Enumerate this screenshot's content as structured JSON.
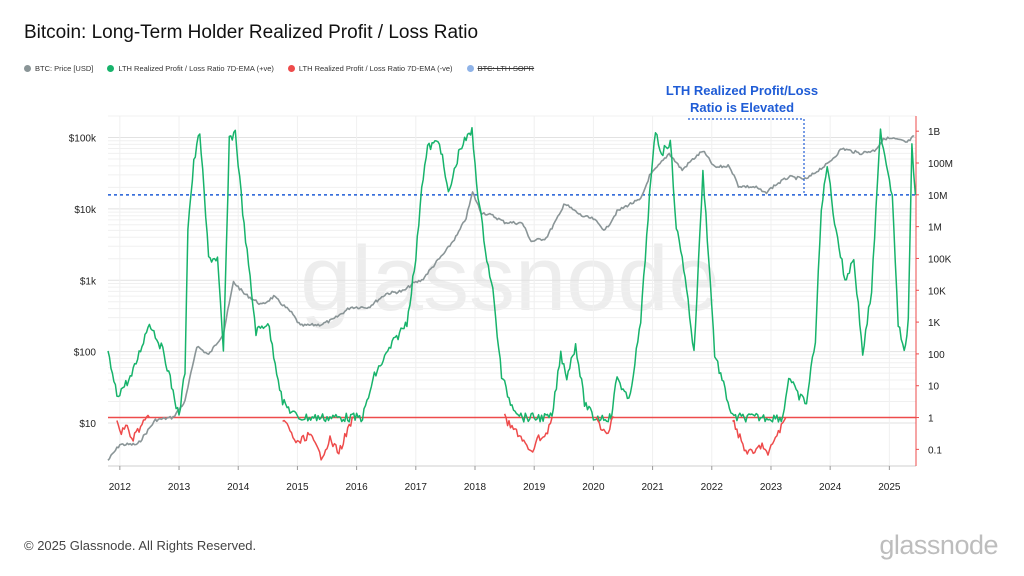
{
  "title": "Bitcoin: Long-Term Holder Realized Profit / Loss Ratio",
  "footer": "© 2025 Glassnode. All Rights Reserved.",
  "brand": "glassnode",
  "watermark": "glassnode",
  "legend": [
    {
      "label": "BTC: Price [USD]",
      "color": "#8a9597",
      "struck": false
    },
    {
      "label": "LTH Realized Profit / Loss Ratio 7D-EMA (+ve)",
      "color": "#17b36b",
      "struck": false
    },
    {
      "label": "LTH Realized Profit / Loss Ratio 7D-EMA (-ve)",
      "color": "#ee4b4b",
      "struck": false
    },
    {
      "label": "BTC: LTH-SOPR",
      "color": "#8fb3e8",
      "struck": true
    }
  ],
  "annotation": {
    "line1": "LTH Realized Profit/Loss",
    "line2": "Ratio is Elevated",
    "color": "#1f5cd6"
  },
  "chart_data": {
    "type": "line",
    "title": "Bitcoin: Long-Term Holder Realized Profit / Loss Ratio",
    "x_range": [
      2011.8,
      2025.45
    ],
    "x_ticks": [
      "2012",
      "2013",
      "2014",
      "2015",
      "2016",
      "2017",
      "2018",
      "2019",
      "2020",
      "2021",
      "2022",
      "2023",
      "2024",
      "2025"
    ],
    "y_left": {
      "label": "",
      "scale": "log",
      "range": [
        2.5,
        200000
      ],
      "ticks": [
        "$10",
        "$100",
        "$1k",
        "$10k",
        "$100k"
      ]
    },
    "y_right": {
      "label": "",
      "scale": "log",
      "range": [
        0.03,
        3000000000
      ],
      "ticks": [
        "0.1",
        "1",
        "10",
        "100",
        "1K",
        "10K",
        "100K",
        "1M",
        "10M",
        "100M",
        "1B"
      ]
    },
    "reference_lines": [
      {
        "axis": "right",
        "value": 1,
        "color": "#ee4b4b",
        "style": "solid"
      },
      {
        "axis": "right",
        "value": 10000000,
        "color": "#1f5cd6",
        "style": "dotted"
      }
    ],
    "series": [
      {
        "name": "BTC: Price [USD]",
        "axis": "left",
        "color": "#8a9597",
        "points": [
          [
            2011.8,
            3
          ],
          [
            2012.0,
            5
          ],
          [
            2012.3,
            5
          ],
          [
            2012.6,
            11
          ],
          [
            2012.9,
            12
          ],
          [
            2013.1,
            20
          ],
          [
            2013.3,
            120
          ],
          [
            2013.5,
            90
          ],
          [
            2013.75,
            180
          ],
          [
            2013.92,
            950
          ],
          [
            2014.1,
            650
          ],
          [
            2014.4,
            450
          ],
          [
            2014.6,
            590
          ],
          [
            2014.9,
            350
          ],
          [
            2015.05,
            230
          ],
          [
            2015.4,
            240
          ],
          [
            2015.6,
            280
          ],
          [
            2015.9,
            420
          ],
          [
            2016.2,
            420
          ],
          [
            2016.5,
            650
          ],
          [
            2016.8,
            710
          ],
          [
            2016.95,
            900
          ],
          [
            2017.1,
            1000
          ],
          [
            2017.35,
            1800
          ],
          [
            2017.5,
            2500
          ],
          [
            2017.7,
            4300
          ],
          [
            2017.85,
            7500
          ],
          [
            2017.96,
            17000
          ],
          [
            2018.1,
            9000
          ],
          [
            2018.3,
            8000
          ],
          [
            2018.5,
            6500
          ],
          [
            2018.8,
            6300
          ],
          [
            2018.95,
            3500
          ],
          [
            2019.2,
            3900
          ],
          [
            2019.45,
            9000
          ],
          [
            2019.5,
            12000
          ],
          [
            2019.8,
            8000
          ],
          [
            2020.0,
            7200
          ],
          [
            2020.2,
            5000
          ],
          [
            2020.4,
            9200
          ],
          [
            2020.6,
            11500
          ],
          [
            2020.8,
            13500
          ],
          [
            2020.95,
            29000
          ],
          [
            2021.1,
            40000
          ],
          [
            2021.28,
            60000
          ],
          [
            2021.5,
            35000
          ],
          [
            2021.65,
            47000
          ],
          [
            2021.85,
            65000
          ],
          [
            2022.05,
            38000
          ],
          [
            2022.3,
            40000
          ],
          [
            2022.45,
            21000
          ],
          [
            2022.75,
            20000
          ],
          [
            2022.9,
            16500
          ],
          [
            2023.05,
            21000
          ],
          [
            2023.3,
            28000
          ],
          [
            2023.6,
            26000
          ],
          [
            2023.8,
            35000
          ],
          [
            2023.95,
            42000
          ],
          [
            2024.2,
            70000
          ],
          [
            2024.5,
            60000
          ],
          [
            2024.75,
            66000
          ],
          [
            2024.92,
            98000
          ],
          [
            2025.1,
            95000
          ],
          [
            2025.3,
            85000
          ],
          [
            2025.42,
            105000
          ]
        ]
      },
      {
        "name": "LTH Realized Profit / Loss Ratio 7D-EMA (+ve)",
        "axis": "right",
        "color": "#17b36b",
        "points": [
          [
            2011.8,
            100
          ],
          [
            2011.95,
            5
          ],
          [
            2012.2,
            20
          ],
          [
            2012.5,
            1000
          ],
          [
            2012.75,
            100
          ],
          [
            2013.0,
            1
          ],
          [
            2013.1,
            30
          ],
          [
            2013.15,
            1000000
          ],
          [
            2013.25,
            100000000
          ],
          [
            2013.35,
            1000000000
          ],
          [
            2013.5,
            100000
          ],
          [
            2013.65,
            100000
          ],
          [
            2013.75,
            100
          ],
          [
            2013.85,
            500000000
          ],
          [
            2013.95,
            1000000000
          ],
          [
            2014.1,
            1000000
          ],
          [
            2014.3,
            500
          ],
          [
            2014.5,
            1000
          ],
          [
            2014.75,
            3
          ],
          [
            2015.0,
            1
          ],
          [
            2015.9,
            1
          ],
          [
            2016.1,
            1
          ],
          [
            2016.3,
            20
          ],
          [
            2016.6,
            200
          ],
          [
            2016.85,
            1000
          ],
          [
            2017.0,
            100000
          ],
          [
            2017.1,
            20000000
          ],
          [
            2017.2,
            300000000
          ],
          [
            2017.4,
            500000000
          ],
          [
            2017.55,
            10000000
          ],
          [
            2017.75,
            300000000
          ],
          [
            2017.95,
            1000000000
          ],
          [
            2018.05,
            10000000
          ],
          [
            2018.2,
            100000
          ],
          [
            2018.3,
            10000
          ],
          [
            2018.45,
            20
          ],
          [
            2018.6,
            3
          ],
          [
            2018.8,
            1
          ],
          [
            2019.3,
            1
          ],
          [
            2019.45,
            100
          ],
          [
            2019.55,
            20
          ],
          [
            2019.7,
            200
          ],
          [
            2019.85,
            3
          ],
          [
            2020.0,
            1
          ],
          [
            2020.3,
            1
          ],
          [
            2020.4,
            20
          ],
          [
            2020.6,
            3
          ],
          [
            2020.8,
            1000
          ],
          [
            2020.95,
            10000000
          ],
          [
            2021.05,
            1000000000
          ],
          [
            2021.15,
            200000000
          ],
          [
            2021.3,
            500000000
          ],
          [
            2021.4,
            1000000
          ],
          [
            2021.55,
            30000
          ],
          [
            2021.7,
            100
          ],
          [
            2021.85,
            50000000
          ],
          [
            2021.95,
            100000
          ],
          [
            2022.05,
            100
          ],
          [
            2022.2,
            10
          ],
          [
            2022.35,
            1
          ],
          [
            2023.2,
            1
          ],
          [
            2023.3,
            20
          ],
          [
            2023.45,
            5
          ],
          [
            2023.6,
            3
          ],
          [
            2023.75,
            300
          ],
          [
            2023.85,
            3000000
          ],
          [
            2023.95,
            100000000
          ],
          [
            2024.05,
            3000000
          ],
          [
            2024.25,
            20000
          ],
          [
            2024.4,
            100000
          ],
          [
            2024.55,
            100
          ],
          [
            2024.7,
            10000
          ],
          [
            2024.85,
            1000000000
          ],
          [
            2024.95,
            100000000
          ],
          [
            2025.05,
            10000000
          ],
          [
            2025.15,
            1000
          ],
          [
            2025.25,
            100
          ],
          [
            2025.32,
            1000
          ],
          [
            2025.38,
            300000000
          ],
          [
            2025.44,
            10000000
          ]
        ]
      },
      {
        "name": "LTH Realized Profit / Loss Ratio 7D-EMA (-ve)",
        "axis": "right",
        "color": "#ee4b4b",
        "segments": [
          [
            [
              2011.95,
              1
            ],
            [
              2012.0,
              0.3
            ],
            [
              2012.1,
              0.6
            ],
            [
              2012.2,
              0.2
            ],
            [
              2012.35,
              0.5
            ],
            [
              2012.5,
              1
            ]
          ],
          [
            [
              2014.75,
              1
            ],
            [
              2014.9,
              0.3
            ],
            [
              2015.0,
              0.15
            ],
            [
              2015.2,
              0.3
            ],
            [
              2015.4,
              0.06
            ],
            [
              2015.55,
              0.2
            ],
            [
              2015.7,
              0.08
            ],
            [
              2015.85,
              0.4
            ],
            [
              2015.95,
              1
            ]
          ],
          [
            [
              2018.5,
              1
            ],
            [
              2018.6,
              0.5
            ],
            [
              2018.75,
              0.3
            ],
            [
              2018.95,
              0.07
            ],
            [
              2019.05,
              0.2
            ],
            [
              2019.2,
              0.3
            ],
            [
              2019.3,
              1
            ]
          ],
          [
            [
              2020.05,
              1
            ],
            [
              2020.15,
              0.3
            ],
            [
              2020.25,
              0.4
            ],
            [
              2020.35,
              1
            ]
          ],
          [
            [
              2022.35,
              1
            ],
            [
              2022.45,
              0.3
            ],
            [
              2022.55,
              0.1
            ],
            [
              2022.7,
              0.07
            ],
            [
              2022.85,
              0.15
            ],
            [
              2022.95,
              0.06
            ],
            [
              2023.05,
              0.2
            ],
            [
              2023.15,
              0.4
            ],
            [
              2023.25,
              1
            ]
          ]
        ]
      }
    ]
  }
}
